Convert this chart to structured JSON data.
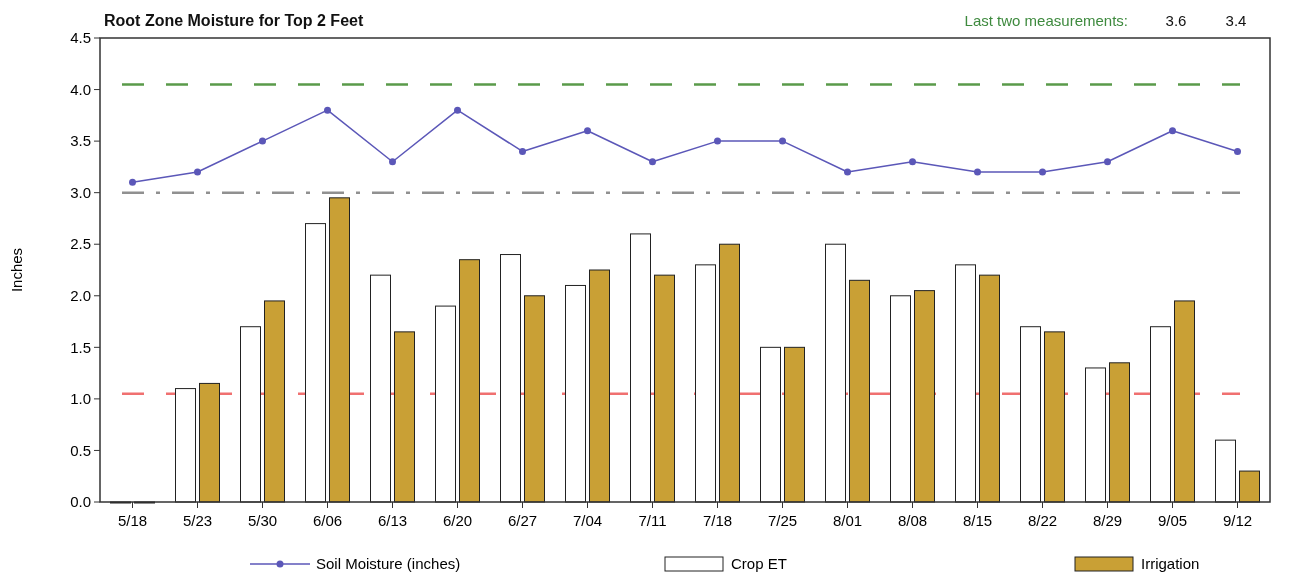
{
  "chart_data": {
    "type": "bar",
    "title": "Root Zone Moisture for Top 2 Feet",
    "ylabel": "Inches",
    "annotations": [
      "Last two measurements:",
      "3.6",
      "3.4"
    ],
    "categories": [
      "5/18",
      "5/23",
      "5/30",
      "6/06",
      "6/13",
      "6/20",
      "6/27",
      "7/04",
      "7/11",
      "7/18",
      "7/25",
      "8/01",
      "8/08",
      "8/15",
      "8/22",
      "8/29",
      "9/05",
      "9/12"
    ],
    "series": [
      {
        "name": "Soil Moisture (inches)",
        "type": "line",
        "color": "#5b57b8",
        "marker": "circle",
        "values": [
          3.1,
          3.2,
          3.5,
          3.8,
          3.3,
          3.8,
          3.4,
          3.6,
          3.3,
          3.5,
          3.5,
          3.2,
          3.3,
          3.2,
          3.2,
          3.3,
          3.6,
          3.4
        ]
      },
      {
        "name": "Crop ET",
        "color": "#ffffff",
        "values": [
          0,
          1.1,
          1.7,
          2.7,
          2.2,
          1.9,
          2.4,
          2.1,
          2.6,
          2.3,
          1.5,
          2.5,
          2.0,
          2.3,
          1.7,
          1.3,
          1.7,
          0.6
        ]
      },
      {
        "name": "Irrigation",
        "color": "#c9a035",
        "values": [
          0,
          1.15,
          1.95,
          2.95,
          1.65,
          2.35,
          2.0,
          2.25,
          2.2,
          2.5,
          1.5,
          2.15,
          2.05,
          2.2,
          1.65,
          1.35,
          1.95,
          0.3
        ]
      }
    ],
    "ylim": [
      0,
      4.5
    ],
    "yticks": [
      {
        "value": 0,
        "label": "0.0"
      },
      {
        "value": 0.5,
        "label": "0.5"
      },
      {
        "value": 1,
        "label": "1.0"
      },
      {
        "value": 1.5,
        "label": "1.5"
      },
      {
        "value": 2,
        "label": "2.0"
      },
      {
        "value": 2.5,
        "label": "2.5"
      },
      {
        "value": 3,
        "label": "3.0"
      },
      {
        "value": 3.5,
        "label": "3.5"
      },
      {
        "value": 4,
        "label": "4.0"
      },
      {
        "value": 4.5,
        "label": "4.5"
      }
    ],
    "ref_lines": [
      {
        "axis": "y",
        "value": 4.05,
        "color": "#5a9a4a",
        "line_style": "dashed"
      },
      {
        "axis": "y",
        "value": 3.0,
        "color": "#909090",
        "line_style": "dashdot"
      },
      {
        "axis": "y",
        "value": 1.05,
        "color": "#f07070",
        "line_style": "dashed"
      }
    ],
    "grid": false,
    "legend": "bottom"
  }
}
